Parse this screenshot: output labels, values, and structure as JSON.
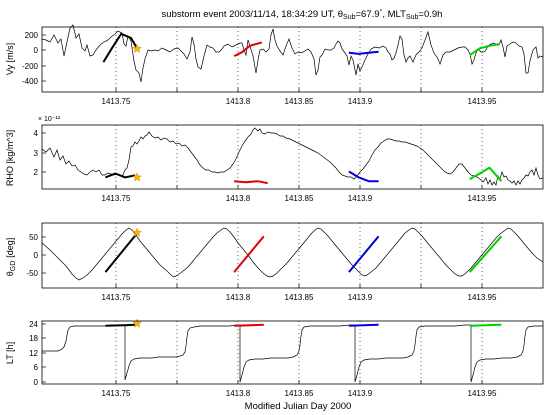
{
  "figure": {
    "title_parts": [
      "substorm event 2003/11/14, 18:34:29 UT, θ",
      "Sub",
      "=67.9",
      "°",
      ", MLT",
      "Sub",
      "=0.9h"
    ],
    "xlabel": "Modified Julian Day 2000",
    "x_ticks": [
      "1413.75",
      "1413.8",
      "1413.85",
      "1413.9",
      "1413.95"
    ]
  },
  "chart_data": [
    {
      "type": "line",
      "panel": "vy",
      "ylabel": "Vy [m/s]",
      "y_ticks": [
        "200",
        "0",
        "-200",
        "-400"
      ],
      "ylim": [
        -480,
        280
      ],
      "xlim": [
        1413.725,
        1413.978
      ],
      "event_marker": {
        "x": 1413.773,
        "y": 25,
        "color": "#FFB300"
      },
      "highlight_segments": [
        {
          "color": "#000000",
          "x": [
            1413.756,
            1413.76,
            1413.765,
            1413.77,
            1413.773
          ],
          "y": [
            -130,
            20,
            200,
            150,
            30
          ]
        },
        {
          "color": "#E00000",
          "x": [
            1413.822,
            1413.826,
            1413.83,
            1413.836
          ],
          "y": [
            -60,
            -15,
            60,
            100
          ]
        },
        {
          "color": "#0000E0",
          "x": [
            1413.88,
            1413.885,
            1413.89,
            1413.895
          ],
          "y": [
            -20,
            -35,
            -20,
            -10
          ]
        },
        {
          "color": "#00D000",
          "x": [
            1413.941,
            1413.946,
            1413.951,
            1413.956
          ],
          "y": [
            -50,
            30,
            60,
            80
          ]
        }
      ]
    },
    {
      "type": "line",
      "panel": "rho",
      "ylabel": "RHO [kg/m^3]",
      "y_exponent": "× 10⁻¹²",
      "y_ticks": [
        "4",
        "3",
        "2"
      ],
      "ylim": [
        1.3,
        4.6
      ],
      "xlim": [
        1413.725,
        1413.978
      ],
      "event_marker": {
        "x": 1413.773,
        "y": 1.9,
        "color": "#FFB300"
      },
      "highlight_segments": [
        {
          "color": "#000000",
          "x": [
            1413.757,
            1413.762,
            1413.767,
            1413.772
          ],
          "y": [
            1.9,
            2.1,
            1.9,
            2.0
          ]
        },
        {
          "color": "#E00000",
          "x": [
            1413.822,
            1413.828,
            1413.834,
            1413.839
          ],
          "y": [
            1.7,
            1.65,
            1.7,
            1.6
          ]
        },
        {
          "color": "#0000E0",
          "x": [
            1413.88,
            1413.885,
            1413.89,
            1413.895
          ],
          "y": [
            2.2,
            1.9,
            1.7,
            1.7
          ]
        },
        {
          "color": "#00D000",
          "x": [
            1413.941,
            1413.946,
            1413.951,
            1413.957
          ],
          "y": [
            1.8,
            2.1,
            2.4,
            1.7
          ]
        }
      ]
    },
    {
      "type": "line",
      "panel": "theta",
      "ylabel_main": "θ",
      "ylabel_sub": "GD",
      "ylabel_unit": "[deg]",
      "y_ticks": [
        "50",
        "0",
        "-50"
      ],
      "ylim": [
        -88,
        88
      ],
      "xlim": [
        1413.725,
        1413.978
      ],
      "event_marker": {
        "x": 1413.773,
        "y": 62,
        "color": "#FFB300"
      },
      "highlight_segments": [
        {
          "color": "#000000",
          "x": [
            1413.757,
            1413.773
          ],
          "y": [
            -45,
            60
          ]
        },
        {
          "color": "#E00000",
          "x": [
            1413.822,
            1413.837
          ],
          "y": [
            -45,
            52
          ]
        },
        {
          "color": "#0000E0",
          "x": [
            1413.88,
            1413.895
          ],
          "y": [
            -45,
            52
          ]
        },
        {
          "color": "#00D000",
          "x": [
            1413.941,
            1413.957
          ],
          "y": [
            -45,
            52
          ]
        }
      ]
    },
    {
      "type": "line",
      "panel": "lt",
      "ylabel": "LT [h]",
      "y_ticks": [
        "24",
        "18",
        "12",
        "6",
        "0"
      ],
      "ylim": [
        0,
        25
      ],
      "xlim": [
        1413.725,
        1413.978
      ],
      "event_marker": {
        "x": 1413.773,
        "y": 24,
        "color": "#FFB300"
      },
      "highlight_segments": [
        {
          "color": "#000000",
          "x": [
            1413.757,
            1413.773
          ],
          "y": [
            23.1,
            23.5
          ]
        },
        {
          "color": "#E00000",
          "x": [
            1413.822,
            1413.837
          ],
          "y": [
            23.1,
            23.5
          ]
        },
        {
          "color": "#0000E0",
          "x": [
            1413.88,
            1413.895
          ],
          "y": [
            23.1,
            23.5
          ]
        },
        {
          "color": "#00D000",
          "x": [
            1413.941,
            1413.957
          ],
          "y": [
            23.1,
            23.5
          ]
        }
      ]
    }
  ]
}
